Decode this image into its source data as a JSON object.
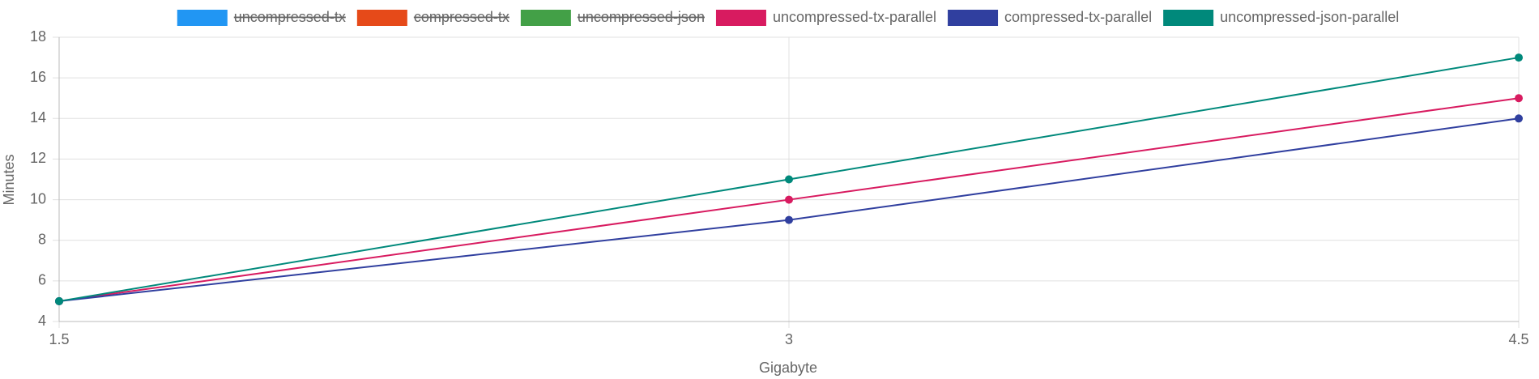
{
  "chart_data": {
    "type": "line",
    "x": [
      1.5,
      3,
      4.5
    ],
    "xlim": [
      1.5,
      4.5
    ],
    "xticks": [
      1.5,
      3,
      4.5
    ],
    "ylim": [
      4,
      18
    ],
    "yticks": [
      4,
      6,
      8,
      10,
      12,
      14,
      16,
      18
    ],
    "xlabel": "Gigabyte",
    "ylabel": "Minutes",
    "grid": true,
    "legend": "top",
    "series": [
      {
        "name": "uncompressed-tx",
        "color": "#2196f3",
        "hidden": true,
        "values": [
          null,
          null,
          null
        ]
      },
      {
        "name": "compressed-tx",
        "color": "#e64a19",
        "hidden": true,
        "values": [
          null,
          null,
          null
        ]
      },
      {
        "name": "uncompressed-json",
        "color": "#43a047",
        "hidden": true,
        "values": [
          null,
          null,
          null
        ]
      },
      {
        "name": "uncompressed-tx-parallel",
        "color": "#d81b60",
        "hidden": false,
        "values": [
          5,
          10,
          15
        ]
      },
      {
        "name": "compressed-tx-parallel",
        "color": "#303f9f",
        "hidden": false,
        "values": [
          5,
          9,
          14
        ]
      },
      {
        "name": "uncompressed-json-parallel",
        "color": "#00897b",
        "hidden": false,
        "values": [
          5,
          11,
          17
        ]
      }
    ]
  }
}
